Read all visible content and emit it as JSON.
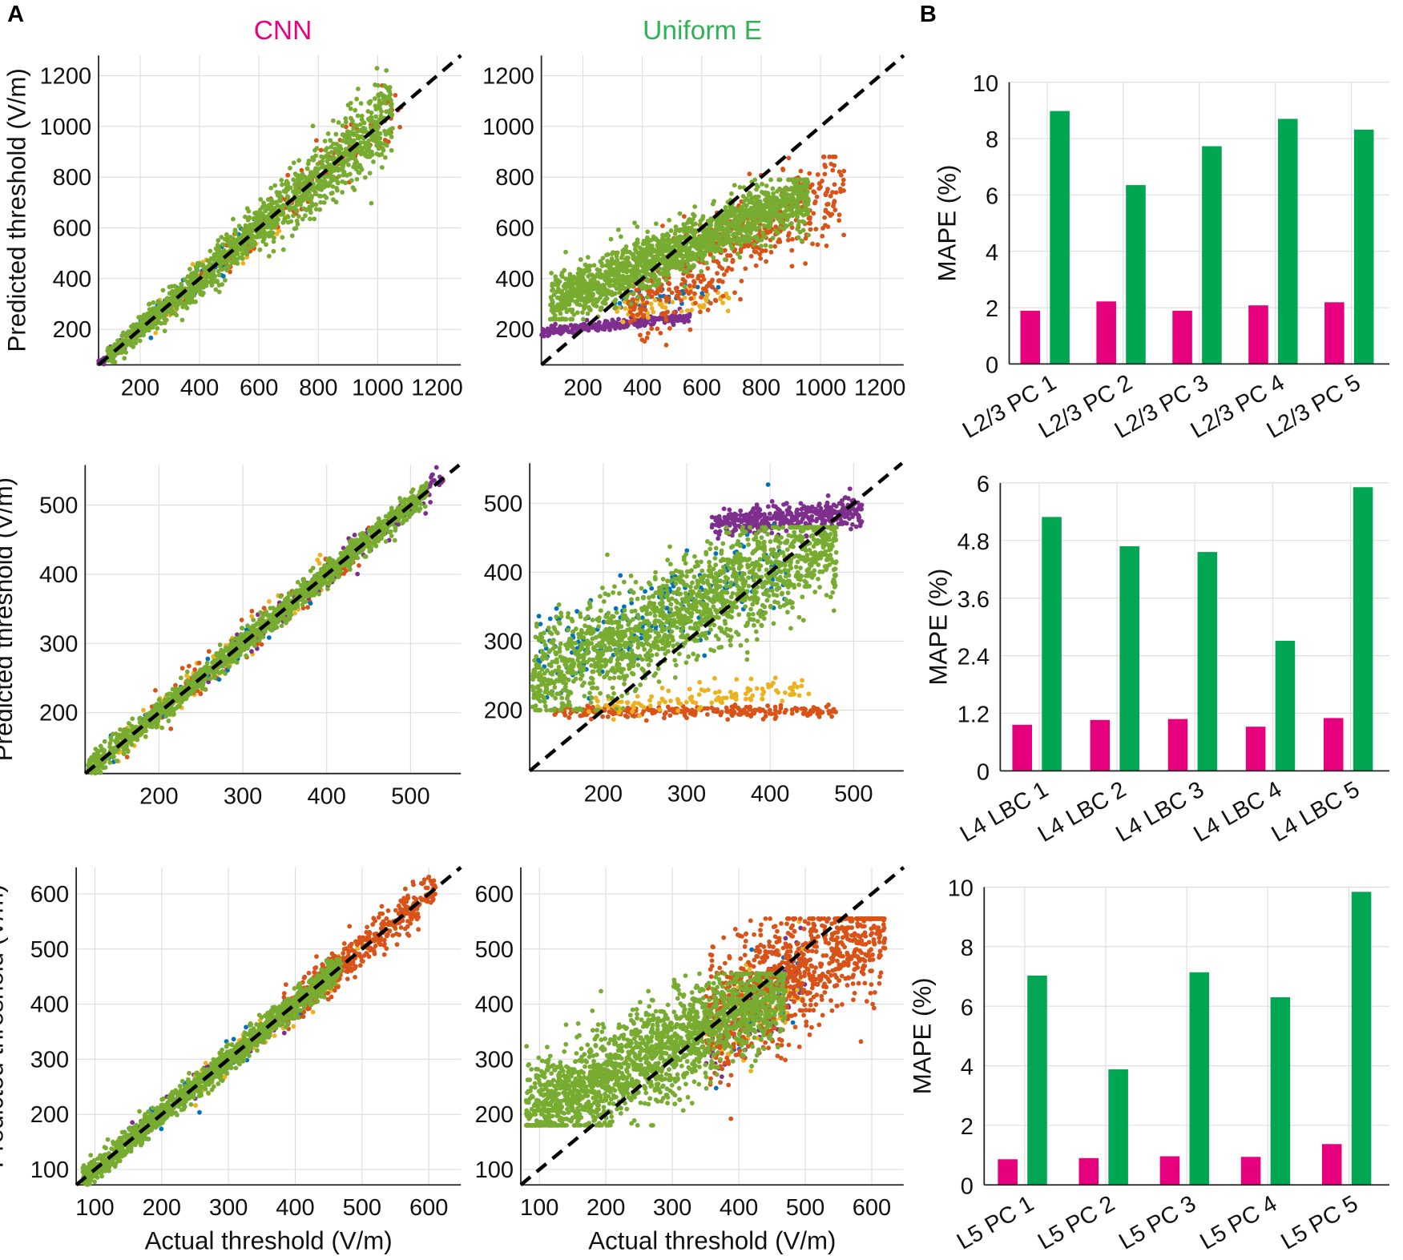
{
  "labels": {
    "panel_a": "A",
    "panel_b": "B",
    "col_cnn": "CNN",
    "col_uniform": "Uniform E",
    "ylabel_scatter": "Predicted threshold (V/m)",
    "xlabel_scatter": "Actual threshold (V/m)",
    "ylabel_bar": "MAPE (%)"
  },
  "colors": {
    "cnn": "#e6007e",
    "uniform": "#00a651",
    "points": [
      "#0072bd",
      "#d95319",
      "#edb120",
      "#7e2f8e",
      "#77ac30"
    ]
  },
  "chart_data": [
    {
      "type": "scatter",
      "method": "CNN",
      "row": 1,
      "xlim": [
        60,
        1280
      ],
      "ylim": [
        60,
        1280
      ],
      "xticks": [
        200,
        400,
        600,
        800,
        1000,
        1200
      ],
      "yticks": [
        200,
        400,
        600,
        800,
        1000,
        1200
      ],
      "reference": "y = x (dashed)",
      "xlabel": "",
      "ylabel": "Predicted threshold (V/m)"
    },
    {
      "type": "scatter",
      "method": "Uniform E",
      "row": 1,
      "xlim": [
        60,
        1280
      ],
      "ylim": [
        60,
        1280
      ],
      "xticks": [
        200,
        400,
        600,
        800,
        1000,
        1200
      ],
      "yticks": [
        200,
        400,
        600,
        800,
        1000,
        1200
      ],
      "reference": "y = x (dashed)",
      "xlabel": "",
      "ylabel": ""
    },
    {
      "type": "scatter",
      "method": "CNN",
      "row": 2,
      "xlim": [
        112,
        560
      ],
      "ylim": [
        112,
        558
      ],
      "xticks": [
        200,
        300,
        400,
        500
      ],
      "yticks": [
        200,
        300,
        400,
        500
      ],
      "reference": "y = x (dashed)",
      "xlabel": "",
      "ylabel": "Predicted threshold (V/m)"
    },
    {
      "type": "scatter",
      "method": "Uniform E",
      "row": 2,
      "xlim": [
        112,
        560
      ],
      "ylim": [
        112,
        558
      ],
      "xticks": [
        200,
        300,
        400,
        500
      ],
      "yticks": [
        200,
        300,
        400,
        500
      ],
      "reference": "y = x (dashed)",
      "xlabel": "",
      "ylabel": ""
    },
    {
      "type": "scatter",
      "method": "CNN",
      "row": 3,
      "xlim": [
        72,
        648
      ],
      "ylim": [
        72,
        648
      ],
      "xticks": [
        100,
        200,
        300,
        400,
        500,
        600
      ],
      "yticks": [
        100,
        200,
        300,
        400,
        500,
        600
      ],
      "reference": "y = x (dashed)",
      "xlabel": "Actual threshold (V/m)",
      "ylabel": "Predicted threshold (V/m)"
    },
    {
      "type": "scatter",
      "method": "Uniform E",
      "row": 3,
      "xlim": [
        72,
        648
      ],
      "ylim": [
        72,
        648
      ],
      "xticks": [
        100,
        200,
        300,
        400,
        500,
        600
      ],
      "yticks": [
        100,
        200,
        300,
        400,
        500,
        600
      ],
      "reference": "y = x (dashed)",
      "xlabel": "Actual threshold (V/m)",
      "ylabel": ""
    },
    {
      "type": "bar",
      "categories": [
        "L2/3 PC 1",
        "L2/3 PC 2",
        "L2/3 PC 3",
        "L2/3 PC 4",
        "L2/3 PC 5"
      ],
      "series": [
        {
          "name": "CNN",
          "values": [
            1.89,
            2.22,
            1.89,
            2.08,
            2.19
          ]
        },
        {
          "name": "Uniform E",
          "values": [
            8.98,
            6.35,
            7.73,
            8.7,
            8.32
          ]
        }
      ],
      "ylim": [
        0,
        10
      ],
      "yticks": [
        "0",
        "2",
        "4",
        "6",
        "8",
        "10"
      ],
      "ylabel": "MAPE (%)",
      "xlabel": ""
    },
    {
      "type": "bar",
      "categories": [
        "L4 LBC 1",
        "L4 LBC 2",
        "L4 LBC 3",
        "L4 LBC 4",
        "L4 LBC 5"
      ],
      "series": [
        {
          "name": "CNN",
          "values": [
            0.96,
            1.06,
            1.08,
            0.92,
            1.1
          ]
        },
        {
          "name": "Uniform E",
          "values": [
            5.29,
            4.68,
            4.56,
            2.71,
            5.91
          ]
        }
      ],
      "ylim": [
        0,
        6
      ],
      "yticks": [
        "0",
        "1.2",
        "2.4",
        "3.6",
        "4.8",
        "6"
      ],
      "ylabel": "MAPE (%)",
      "xlabel": ""
    },
    {
      "type": "bar",
      "categories": [
        "L5 PC 1",
        "L5 PC 2",
        "L5 PC 3",
        "L5 PC 4",
        "L5 PC 5"
      ],
      "series": [
        {
          "name": "CNN",
          "values": [
            0.86,
            0.9,
            0.96,
            0.94,
            1.37
          ]
        },
        {
          "name": "Uniform E",
          "values": [
            7.03,
            3.88,
            7.14,
            6.3,
            9.84
          ]
        }
      ],
      "ylim": [
        0,
        10
      ],
      "yticks": [
        "0",
        "2",
        "4",
        "6",
        "8",
        "10"
      ],
      "ylabel": "MAPE (%)",
      "xlabel": ""
    }
  ]
}
